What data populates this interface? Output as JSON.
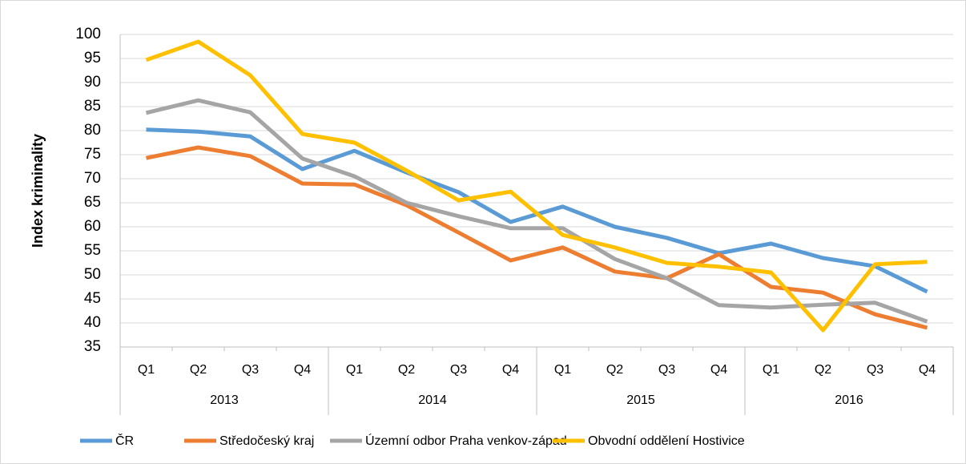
{
  "chart_data": {
    "type": "line",
    "y_label": "Index kriminality",
    "categories": [
      "Q1",
      "Q2",
      "Q3",
      "Q4",
      "Q1",
      "Q2",
      "Q3",
      "Q4",
      "Q1",
      "Q2",
      "Q3",
      "Q4",
      "Q1",
      "Q2",
      "Q3",
      "Q4"
    ],
    "category_groups": [
      "2013",
      "2014",
      "2015",
      "2016"
    ],
    "ylim": [
      35,
      100
    ],
    "yticks": [
      35,
      40,
      45,
      50,
      55,
      60,
      65,
      70,
      75,
      80,
      85,
      90,
      95,
      100
    ],
    "grid": true,
    "legend": "bottom",
    "series": [
      {
        "name": "ČR",
        "color": "#5b9bd5",
        "values": [
          80.2,
          79.8,
          78.8,
          72,
          75.8,
          71.3,
          67.2,
          61,
          64.2,
          60,
          57.7,
          54.5,
          56.5,
          53.5,
          51.8,
          46.5
        ]
      },
      {
        "name": "Středočeský kraj",
        "color": "#ed7d31",
        "values": [
          74.3,
          76.5,
          74.7,
          69,
          68.8,
          64.5,
          58.8,
          53,
          55.7,
          50.7,
          49.3,
          54.3,
          47.5,
          46.3,
          41.8,
          39
        ]
      },
      {
        "name": "Územní odbor Praha venkov-západ",
        "color": "#a5a5a5",
        "values": [
          83.7,
          86.3,
          83.8,
          74.2,
          70.5,
          65,
          62.2,
          59.7,
          59.7,
          53.3,
          49.3,
          43.7,
          43.2,
          43.8,
          44.2,
          40.3
        ]
      },
      {
        "name": "Obvodní oddělení Hostivice",
        "color": "#ffc000",
        "values": [
          94.7,
          98.5,
          91.5,
          79.3,
          77.5,
          71.7,
          65.5,
          67.3,
          58.3,
          55.7,
          52.5,
          51.7,
          50.5,
          38.5,
          52.2,
          52.7
        ]
      }
    ]
  }
}
